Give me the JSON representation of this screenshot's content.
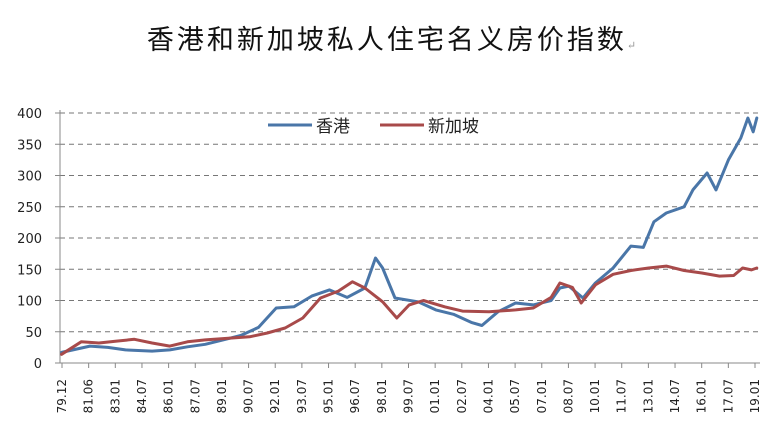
{
  "chart_data": {
    "type": "line",
    "title": "香港和新加坡私人住宅名义房价指数",
    "xlabel": "",
    "ylabel": "",
    "ylim": [
      0,
      400
    ],
    "yticks": [
      0,
      50,
      100,
      150,
      200,
      250,
      300,
      350,
      400
    ],
    "grid": true,
    "legend_position": "top-center",
    "x_tick_labels": [
      "79.12",
      "81.06",
      "83.01",
      "84.07",
      "86.01",
      "87.07",
      "89.01",
      "90.07",
      "92.01",
      "93.07",
      "95.01",
      "96.07",
      "98.01",
      "99.07",
      "01.01",
      "02.07",
      "04.01",
      "05.07",
      "07.01",
      "08.07",
      "10.01",
      "11.07",
      "13.01",
      "14.07",
      "16.01",
      "17.07",
      "19.01"
    ],
    "series": [
      {
        "name": "香港",
        "color": "#4a76a8",
        "points": [
          [
            1979.9,
            17
          ],
          [
            1981.5,
            27
          ],
          [
            1982.5,
            25
          ],
          [
            1983.5,
            21
          ],
          [
            1985,
            19
          ],
          [
            1986,
            21
          ],
          [
            1987,
            26
          ],
          [
            1988,
            30
          ],
          [
            1989,
            37
          ],
          [
            1990,
            44
          ],
          [
            1991,
            57
          ],
          [
            1992,
            88
          ],
          [
            1993,
            90
          ],
          [
            1994,
            107
          ],
          [
            1995,
            117
          ],
          [
            1996,
            105
          ],
          [
            1997,
            120
          ],
          [
            1997.6,
            168
          ],
          [
            1998,
            152
          ],
          [
            1998.7,
            104
          ],
          [
            2000,
            98
          ],
          [
            2001,
            85
          ],
          [
            2002,
            78
          ],
          [
            2003,
            65
          ],
          [
            2003.6,
            60
          ],
          [
            2004.5,
            82
          ],
          [
            2005.5,
            96
          ],
          [
            2006.5,
            93
          ],
          [
            2007.5,
            100
          ],
          [
            2008,
            120
          ],
          [
            2008.5,
            123
          ],
          [
            2009.3,
            104
          ],
          [
            2010,
            128
          ],
          [
            2011,
            152
          ],
          [
            2012,
            187
          ],
          [
            2012.7,
            185
          ],
          [
            2013.3,
            226
          ],
          [
            2014,
            240
          ],
          [
            2015,
            250
          ],
          [
            2015.5,
            277
          ],
          [
            2016.3,
            304
          ],
          [
            2016.8,
            277
          ],
          [
            2017.5,
            325
          ],
          [
            2018.2,
            360
          ],
          [
            2018.6,
            392
          ],
          [
            2018.9,
            370
          ],
          [
            2019.1,
            392
          ]
        ]
      },
      {
        "name": "新加坡",
        "color": "#a84a4a",
        "points": [
          [
            1979.9,
            14
          ],
          [
            1981,
            34
          ],
          [
            1982,
            32
          ],
          [
            1983,
            35
          ],
          [
            1984,
            38
          ],
          [
            1985,
            32
          ],
          [
            1986,
            27
          ],
          [
            1987,
            34
          ],
          [
            1988,
            37
          ],
          [
            1989.5,
            40
          ],
          [
            1990.5,
            42
          ],
          [
            1991.5,
            48
          ],
          [
            1992.5,
            56
          ],
          [
            1993.5,
            72
          ],
          [
            1994.5,
            104
          ],
          [
            1995.5,
            115
          ],
          [
            1996.3,
            130
          ],
          [
            1997,
            120
          ],
          [
            1998,
            98
          ],
          [
            1998.8,
            72
          ],
          [
            1999.5,
            93
          ],
          [
            2000.3,
            100
          ],
          [
            2001.5,
            90
          ],
          [
            2002.5,
            83
          ],
          [
            2004,
            82
          ],
          [
            2005.5,
            85
          ],
          [
            2006.5,
            88
          ],
          [
            2007.5,
            105
          ],
          [
            2008,
            128
          ],
          [
            2008.7,
            121
          ],
          [
            2009.2,
            96
          ],
          [
            2010,
            125
          ],
          [
            2011,
            142
          ],
          [
            2012,
            148
          ],
          [
            2013,
            152
          ],
          [
            2014,
            155
          ],
          [
            2015,
            148
          ],
          [
            2016,
            144
          ],
          [
            2017,
            139
          ],
          [
            2017.8,
            140
          ],
          [
            2018.3,
            152
          ],
          [
            2018.8,
            149
          ],
          [
            2019.1,
            152
          ]
        ]
      }
    ]
  },
  "legend": {
    "hk_label": "香港",
    "sg_label": "新加坡"
  },
  "title_text": "香港和新加坡私人住宅名义房价指数",
  "title_mark": "↵"
}
